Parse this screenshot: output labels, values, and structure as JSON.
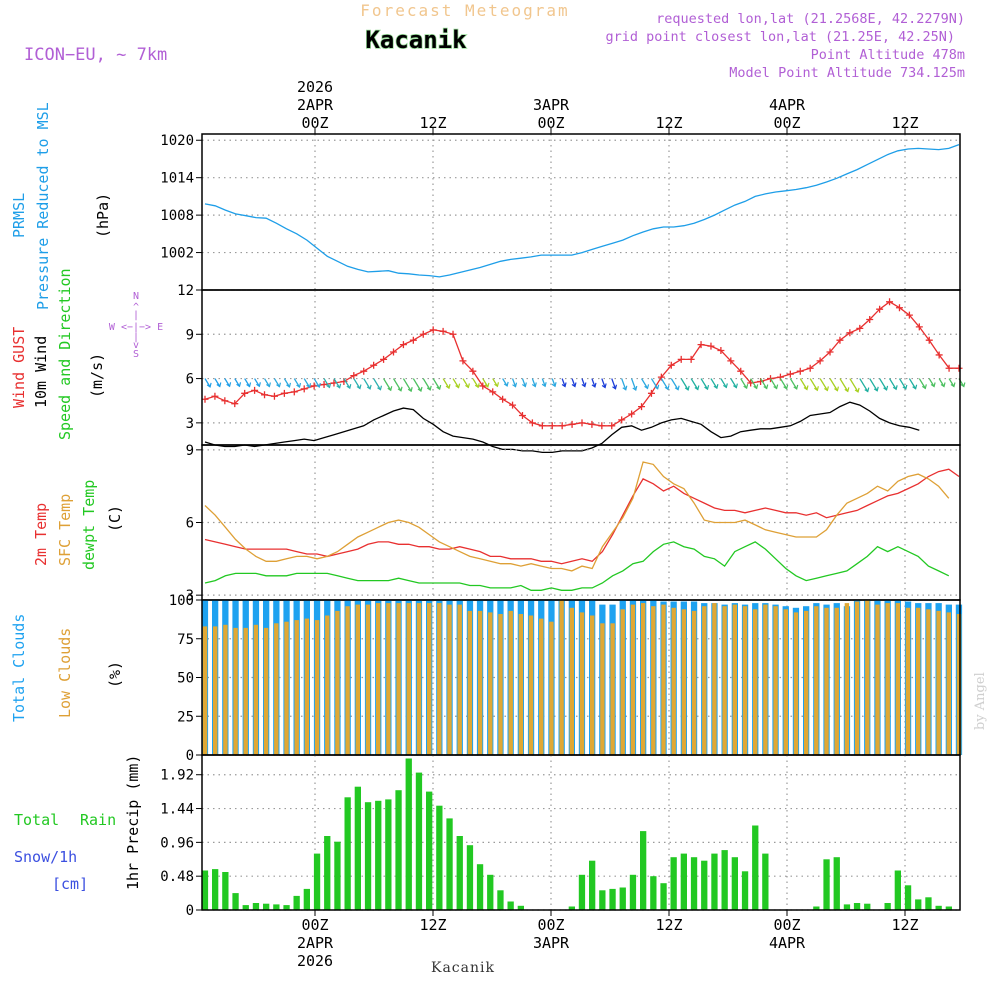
{
  "header": {
    "subtitle": "Forecast Meteogram",
    "location": "Kacanik",
    "model": "ICON−EU, ~ 7km",
    "requested": "requested lon,lat (21.2568E, 42.2279N)",
    "grid_point": "grid point closest lon,lat (21.25E, 42.25N)",
    "point_altitude": "Point Altitude 478m",
    "model_altitude": "Model Point Altitude 734.125m",
    "credit": "by Angel",
    "footer": "Kacanik"
  },
  "time_axis": {
    "top_labels": [
      {
        "lines": [
          "2026",
          "2APR",
          "00Z"
        ],
        "hour": 9
      },
      {
        "lines": [
          "12Z"
        ],
        "hour": 21
      },
      {
        "lines": [
          "3APR",
          "00Z"
        ],
        "hour": 33
      },
      {
        "lines": [
          "12Z"
        ],
        "hour": 45
      },
      {
        "lines": [
          "4APR",
          "00Z"
        ],
        "hour": 57
      },
      {
        "lines": [
          "12Z"
        ],
        "hour": 69
      }
    ],
    "bottom_labels": [
      {
        "lines": [
          "00Z",
          "2APR",
          "2026"
        ],
        "hour": 9
      },
      {
        "lines": [
          "12Z"
        ],
        "hour": 21
      },
      {
        "lines": [
          "00Z",
          "3APR"
        ],
        "hour": 33
      },
      {
        "lines": [
          "12Z"
        ],
        "hour": 45
      },
      {
        "lines": [
          "00Z",
          "4APR"
        ],
        "hour": 57
      },
      {
        "lines": [
          "12Z"
        ],
        "hour": 69
      }
    ]
  },
  "panel_labels": {
    "pressure": [
      "PRMSL",
      "Pressure Reduced to MSL",
      "(hPa)"
    ],
    "wind": [
      "Wind GUST",
      "10m Wind",
      "Speed and Direction",
      "(m/s)"
    ],
    "compass": [
      "N",
      "^",
      "|",
      "W <−|−> E",
      "|",
      "v",
      "S"
    ],
    "temp": [
      "2m Temp",
      "SFC Temp",
      "dewpt Temp",
      "(C)"
    ],
    "clouds": [
      "Total Clouds",
      "Low Clouds",
      "(%)"
    ],
    "precip": [
      "Total",
      "Rain",
      "Snow/1h",
      "[cm]",
      "1hr Precip (mm)"
    ]
  },
  "chart_data": [
    {
      "type": "line",
      "title": "PRMSL Pressure Reduced to MSL",
      "ylabel": "(hPa)",
      "ylim": [
        996,
        1021
      ],
      "yticks": [
        "1020",
        "1014",
        "1008",
        "1002"
      ],
      "ytick_values": [
        1020,
        1014,
        1008,
        1002
      ],
      "series": [
        {
          "name": "PRMSL",
          "color": "#1e9ee8",
          "values": [
            1009.8,
            1009.5,
            1008.8,
            1008.2,
            1007.9,
            1007.6,
            1007.5,
            1006.7,
            1005.8,
            1005.0,
            1004.0,
            1002.7,
            1001.4,
            1000.6,
            999.8,
            999.3,
            998.9,
            999.0,
            999.1,
            998.7,
            998.6,
            998.4,
            998.3,
            998.1,
            998.4,
            998.8,
            999.2,
            999.6,
            1000.1,
            1000.6,
            1000.9,
            1001.1,
            1001.3,
            1001.6,
            1001.6,
            1001.6,
            1001.6,
            1002.0,
            1002.5,
            1003.0,
            1003.5,
            1004.0,
            1004.7,
            1005.3,
            1005.8,
            1006.1,
            1006.1,
            1006.3,
            1006.7,
            1007.3,
            1008.0,
            1008.8,
            1009.6,
            1010.2,
            1011.0,
            1011.4,
            1011.7,
            1011.9,
            1012.1,
            1012.4,
            1012.8,
            1013.3,
            1013.9,
            1014.6,
            1015.3,
            1016.1,
            1016.9,
            1017.7,
            1018.3,
            1018.6,
            1018.7,
            1018.6,
            1018.5,
            1018.7,
            1019.3
          ]
        }
      ]
    },
    {
      "type": "line",
      "title": "Wind GUST / 10m Wind Speed and Direction",
      "ylabel": "(m/s)",
      "ylim": [
        1.5,
        12
      ],
      "yticks": [
        "12",
        "9",
        "6",
        "3"
      ],
      "ytick_values": [
        12,
        9,
        6,
        3
      ],
      "series": [
        {
          "name": "Wind GUST",
          "color": "#e83030",
          "values": [
            4.6,
            4.8,
            4.5,
            4.3,
            5.0,
            5.2,
            4.9,
            4.8,
            5.0,
            5.1,
            5.3,
            5.5,
            5.6,
            5.7,
            5.8,
            6.2,
            6.5,
            6.9,
            7.3,
            7.8,
            8.3,
            8.6,
            9.0,
            9.3,
            9.2,
            9.0,
            7.2,
            6.5,
            5.5,
            5.1,
            4.6,
            4.2,
            3.5,
            3.0,
            2.8,
            2.8,
            2.8,
            2.9,
            3.0,
            2.9,
            2.8,
            2.8,
            3.2,
            3.6,
            4.1,
            5.0,
            6.1,
            6.9,
            7.3,
            7.3,
            8.3,
            8.2,
            7.9,
            7.2,
            6.5,
            5.7,
            5.8,
            6.0,
            6.1,
            6.3,
            6.5,
            6.7,
            7.2,
            7.8,
            8.6,
            9.1,
            9.4,
            10.0,
            10.7,
            11.2,
            10.8,
            10.3,
            9.5,
            8.6,
            7.6,
            6.7,
            6.7
          ]
        },
        {
          "name": "10m Wind",
          "color": "#000000",
          "values": [
            1.7,
            1.5,
            1.4,
            1.4,
            1.5,
            1.4,
            1.5,
            1.6,
            1.7,
            1.8,
            1.9,
            1.8,
            2.0,
            2.2,
            2.4,
            2.6,
            2.8,
            3.2,
            3.5,
            3.8,
            4.0,
            3.9,
            3.3,
            2.9,
            2.4,
            2.1,
            2.0,
            1.9,
            1.7,
            1.4,
            1.2,
            1.2,
            1.1,
            1.1,
            1.0,
            1.0,
            1.1,
            1.1,
            1.1,
            1.3,
            1.6,
            2.2,
            2.7,
            2.8,
            2.5,
            2.7,
            3.0,
            3.2,
            3.3,
            3.1,
            2.9,
            2.4,
            2.0,
            2.1,
            2.4,
            2.5,
            2.6,
            2.6,
            2.7,
            2.8,
            3.1,
            3.5,
            3.6,
            3.7,
            4.1,
            4.4,
            4.2,
            3.8,
            3.3,
            3.0,
            2.8,
            2.7,
            2.5
          ]
        }
      ],
      "wind_barb_colors": [
        "#1e9ee8",
        "#2aa8e0",
        "#2bb0b0",
        "#4cc060",
        "#a8d020",
        "#2aa8e0",
        "#1a3cd8",
        "#2aa8e0",
        "#20b0a0",
        "#4cc060",
        "#a8d020",
        "#20b0a0",
        "#4cc060"
      ]
    },
    {
      "type": "line",
      "title": "2m Temp / SFC Temp / dewpt Temp",
      "ylabel": "(C)",
      "ylim": [
        2.8,
        9.2
      ],
      "yticks": [
        "9",
        "6",
        "3"
      ],
      "ytick_values": [
        9,
        6,
        3
      ],
      "series": [
        {
          "name": "2m Temp",
          "color": "#e83030",
          "values": [
            5.3,
            5.2,
            5.1,
            5.0,
            4.9,
            4.9,
            4.9,
            4.9,
            4.9,
            4.8,
            4.7,
            4.7,
            4.6,
            4.7,
            4.8,
            4.9,
            5.1,
            5.2,
            5.2,
            5.1,
            5.1,
            5.0,
            5.0,
            4.9,
            4.9,
            5.0,
            4.9,
            4.8,
            4.6,
            4.6,
            4.5,
            4.5,
            4.5,
            4.4,
            4.4,
            4.3,
            4.4,
            4.5,
            4.4,
            4.8,
            5.5,
            6.3,
            7.1,
            7.8,
            7.6,
            7.3,
            7.5,
            7.2,
            7.0,
            6.8,
            6.6,
            6.5,
            6.5,
            6.4,
            6.5,
            6.6,
            6.5,
            6.4,
            6.4,
            6.3,
            6.4,
            6.2,
            6.3,
            6.4,
            6.5,
            6.7,
            6.9,
            7.1,
            7.2,
            7.4,
            7.6,
            7.9,
            8.1,
            8.2,
            7.9
          ]
        },
        {
          "name": "SFC Temp",
          "color": "#dea036",
          "values": [
            6.7,
            6.3,
            5.8,
            5.3,
            4.9,
            4.6,
            4.4,
            4.4,
            4.5,
            4.6,
            4.6,
            4.5,
            4.6,
            4.8,
            5.1,
            5.4,
            5.6,
            5.8,
            6.0,
            6.1,
            6.0,
            5.8,
            5.5,
            5.2,
            5.0,
            4.8,
            4.6,
            4.5,
            4.4,
            4.3,
            4.3,
            4.2,
            4.3,
            4.2,
            4.1,
            4.1,
            4.0,
            4.2,
            4.1,
            5.0,
            5.6,
            6.2,
            7.0,
            8.5,
            8.4,
            7.9,
            7.6,
            7.4,
            6.8,
            6.1,
            6.0,
            6.0,
            6.0,
            6.1,
            5.9,
            5.7,
            5.6,
            5.5,
            5.4,
            5.4,
            5.4,
            5.7,
            6.3,
            6.8,
            7.0,
            7.2,
            7.5,
            7.3,
            7.7,
            7.9,
            8.0,
            7.8,
            7.5,
            7.0
          ]
        },
        {
          "name": "dewpt Temp",
          "color": "#22c822",
          "values": [
            3.5,
            3.6,
            3.8,
            3.9,
            3.9,
            3.9,
            3.8,
            3.8,
            3.8,
            3.9,
            3.9,
            3.9,
            3.9,
            3.8,
            3.7,
            3.6,
            3.6,
            3.6,
            3.6,
            3.7,
            3.6,
            3.5,
            3.5,
            3.5,
            3.5,
            3.5,
            3.4,
            3.4,
            3.3,
            3.3,
            3.3,
            3.4,
            3.2,
            3.2,
            3.3,
            3.2,
            3.2,
            3.3,
            3.3,
            3.5,
            3.8,
            4.0,
            4.3,
            4.4,
            4.8,
            5.1,
            5.2,
            5.0,
            4.9,
            4.6,
            4.5,
            4.2,
            4.8,
            5.0,
            5.2,
            4.9,
            4.5,
            4.1,
            3.8,
            3.6,
            3.7,
            3.8,
            3.9,
            4.0,
            4.3,
            4.6,
            5.0,
            4.8,
            5.0,
            4.8,
            4.6,
            4.2,
            4.0,
            3.8
          ]
        }
      ]
    },
    {
      "type": "bar",
      "title": "Total Clouds / Low Clouds",
      "ylabel": "(%)",
      "ylim": [
        0,
        100
      ],
      "yticks": [
        "100",
        "75",
        "50",
        "25",
        "0"
      ],
      "ytick_values": [
        100,
        75,
        50,
        25,
        0
      ],
      "series": [
        {
          "name": "Total Clouds",
          "color": "#1ea2f0",
          "values": [
            100,
            100,
            100,
            100,
            100,
            100,
            100,
            100,
            100,
            100,
            100,
            100,
            100,
            100,
            100,
            100,
            100,
            100,
            100,
            100,
            100,
            100,
            100,
            100,
            100,
            100,
            100,
            100,
            100,
            100,
            100,
            100,
            100,
            100,
            100,
            100,
            100,
            100,
            100,
            97,
            97,
            100,
            100,
            100,
            100,
            99,
            99,
            99,
            99,
            98,
            98,
            97,
            98,
            97,
            98,
            98,
            97,
            96,
            95,
            96,
            98,
            97,
            98,
            96,
            100,
            100,
            100,
            100,
            100,
            99,
            98,
            98,
            98,
            97,
            97
          ]
        },
        {
          "name": "Low Clouds",
          "color": "#e0a834",
          "values": [
            83,
            83,
            84,
            82,
            82,
            84,
            82,
            85,
            86,
            87,
            88,
            87,
            90,
            93,
            96,
            97,
            97,
            98,
            98,
            98,
            98,
            98,
            98,
            98,
            97,
            97,
            93,
            93,
            92,
            91,
            93,
            91,
            90,
            88,
            86,
            100,
            95,
            92,
            90,
            85,
            85,
            94,
            97,
            98,
            96,
            97,
            95,
            94,
            93,
            96,
            98,
            96,
            97,
            96,
            94,
            97,
            96,
            94,
            92,
            93,
            96,
            95,
            95,
            98,
            99,
            100,
            97,
            98,
            98,
            95,
            95,
            94,
            93,
            92,
            91
          ]
        }
      ]
    },
    {
      "type": "bar",
      "title": "1hr Precip (mm)",
      "ylabel": "1hr Precip (mm)",
      "ylim": [
        0,
        2.2
      ],
      "yticks": [
        "1.92",
        "1.44",
        "0.96",
        "0.48",
        "0"
      ],
      "ytick_values": [
        1.92,
        1.44,
        0.96,
        0.48,
        0
      ],
      "series": [
        {
          "name": "Total Rain",
          "color": "#22c822",
          "values": [
            0.56,
            0.58,
            0.54,
            0.24,
            0.07,
            0.1,
            0.09,
            0.08,
            0.07,
            0.2,
            0.3,
            0.8,
            1.05,
            0.97,
            1.6,
            1.75,
            1.53,
            1.55,
            1.57,
            1.7,
            2.15,
            1.95,
            1.68,
            1.48,
            1.3,
            1.05,
            0.92,
            0.65,
            0.5,
            0.28,
            0.12,
            0.06,
            0,
            0,
            0,
            0,
            0.05,
            0.5,
            0.7,
            0.28,
            0.3,
            0.32,
            0.5,
            1.12,
            0.48,
            0.38,
            0.75,
            0.8,
            0.75,
            0.7,
            0.8,
            0.85,
            0.75,
            0.55,
            1.2,
            0.8,
            0,
            0,
            0,
            0,
            0.05,
            0.72,
            0.75,
            0.08,
            0.1,
            0.09,
            0,
            0.1,
            0.56,
            0.35,
            0.15,
            0.18,
            0.06,
            0.05,
            0
          ]
        }
      ]
    }
  ]
}
